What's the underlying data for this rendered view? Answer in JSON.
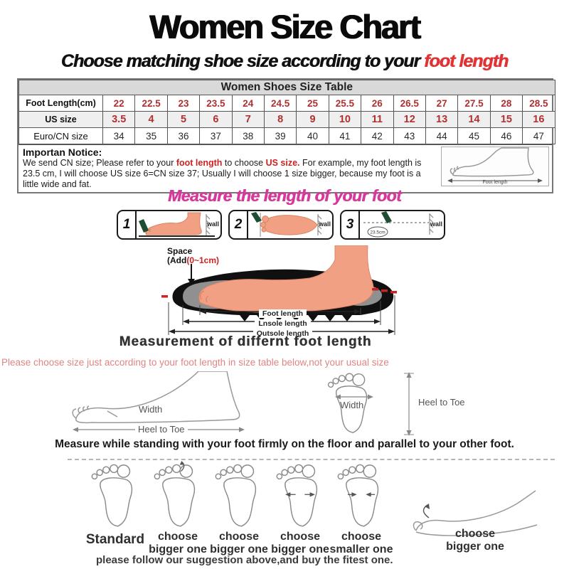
{
  "colors": {
    "accent_red": "#cc2222",
    "table_value_red": "#b03030",
    "magenta_heading": "#d6399b",
    "pink_note": "#e08484",
    "skin": "#f2a084",
    "pen_green": "#1e4d33",
    "table_header_bg": "#d9d9d9"
  },
  "header": {
    "title": "Women Size Chart",
    "subtitle_prefix": "Choose matching shoe size according to your ",
    "subtitle_highlight": "foot length"
  },
  "size_table": {
    "title": "Women Shoes Size Table",
    "rows": [
      {
        "label": "Foot Length(cm)",
        "values": [
          "22",
          "22.5",
          "23",
          "23.5",
          "24",
          "24.5",
          "25",
          "25.5",
          "26",
          "26.5",
          "27",
          "27.5",
          "28",
          "28.5"
        ]
      },
      {
        "label": "US size",
        "values": [
          "3.5",
          "4",
          "5",
          "6",
          "7",
          "8",
          "9",
          "10",
          "11",
          "12",
          "13",
          "14",
          "15",
          "16"
        ]
      },
      {
        "label": "Euro/CN size",
        "values": [
          "34",
          "35",
          "36",
          "37",
          "38",
          "39",
          "40",
          "41",
          "42",
          "43",
          "44",
          "45",
          "46",
          "47"
        ]
      }
    ]
  },
  "notice": {
    "heading": "Importan Notice:",
    "seg1": "We send CN size; Please refer to your ",
    "seg2": "foot length",
    "seg3": " to choose ",
    "seg4": "US size.",
    "seg5": " For example, my foot length is 23.5 cm, I will choose US size 6=CN size 37; Usually I will choose 1 size bigger, because my foot is a little wide and fat.",
    "foot_diagram_label": "Foot length"
  },
  "measure_section": {
    "heading": "Measure the length of your foot",
    "steps": [
      {
        "number": "1",
        "wall": "wall"
      },
      {
        "number": "2",
        "wall": "wall"
      },
      {
        "number": "3",
        "wall": "wall",
        "measurement": "23.5cm"
      }
    ]
  },
  "sole_diagram": {
    "space_label": "Space",
    "add_black": "(Add",
    "add_red": "(0~1cm)",
    "foot_length": "Foot length",
    "insole_length": "Lnsole length",
    "outsole_length": "Outsole length",
    "caption": "Measurement of differnt foot length"
  },
  "size_note": "Please choose size just according to your foot length in size table below,not your usual size",
  "measuring_guide": {
    "side_width": "Width",
    "side_heel_to_toe": "Heel to Toe",
    "top_width": "Width",
    "top_heel_to_toe": "Heel to Toe",
    "standing_note": "Measure while standing with your foot firmly on the floor and parallel to your other foot."
  },
  "fit_guide": {
    "items": [
      {
        "line1": "Standard",
        "line2": ""
      },
      {
        "line1": "choose",
        "line2": "bigger one"
      },
      {
        "line1": "choose",
        "line2": "bigger one"
      },
      {
        "line1": "choose",
        "line2": "bigger one"
      },
      {
        "line1": "choose",
        "line2": "smaller one"
      },
      {
        "line1": "choose",
        "line2": "bigger one"
      }
    ],
    "footer": "please follow our suggestion above,and buy the fitest one."
  }
}
